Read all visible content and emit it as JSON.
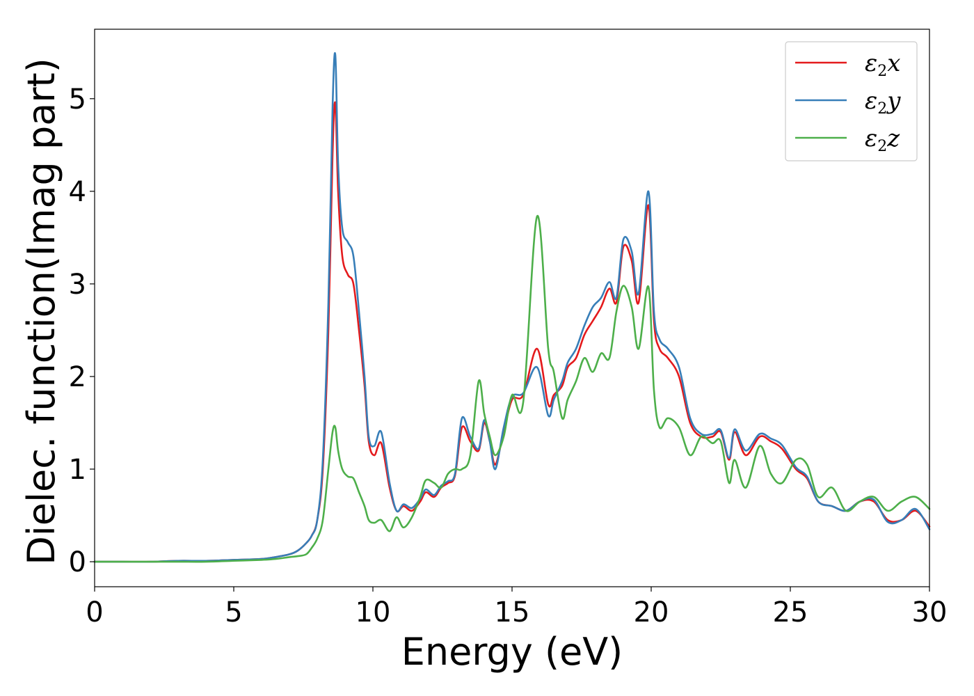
{
  "chart_data": {
    "type": "line",
    "title": "",
    "xlabel": "Energy (eV)",
    "ylabel": "Dielec. function(Imag part)",
    "xlim": [
      0,
      30
    ],
    "ylim": [
      -0.27,
      5.75
    ],
    "xticks": [
      0,
      5,
      10,
      15,
      20,
      25,
      30
    ],
    "yticks": [
      0,
      1,
      2,
      3,
      4,
      5
    ],
    "grid": false,
    "legend_position": "top-right",
    "x": [
      0,
      1,
      2,
      3,
      4,
      5,
      6,
      6.5,
      7,
      7.3,
      7.6,
      7.8,
      8.0,
      8.2,
      8.4,
      8.55,
      8.65,
      8.75,
      8.9,
      9.1,
      9.3,
      9.5,
      9.7,
      9.85,
      10.05,
      10.3,
      10.6,
      10.85,
      11.1,
      11.4,
      11.7,
      11.9,
      12.2,
      12.45,
      12.7,
      12.95,
      13.2,
      13.5,
      13.8,
      14.0,
      14.2,
      14.4,
      14.7,
      15.0,
      15.4,
      15.9,
      16.3,
      16.5,
      16.8,
      17.0,
      17.3,
      17.6,
      17.9,
      18.2,
      18.5,
      18.75,
      19.0,
      19.3,
      19.55,
      19.9,
      20.1,
      20.3,
      20.6,
      21.0,
      21.4,
      21.8,
      22.2,
      22.5,
      22.8,
      23.0,
      23.4,
      23.9,
      24.3,
      24.7,
      25.2,
      25.6,
      26.0,
      26.5,
      27.0,
      27.5,
      28.0,
      28.5,
      29.0,
      29.5,
      30.0
    ],
    "series": [
      {
        "name": "ε2x",
        "color": "#e41a1c",
        "values": [
          0.0,
          0.0,
          0.0,
          0.01,
          0.01,
          0.02,
          0.03,
          0.05,
          0.08,
          0.12,
          0.2,
          0.28,
          0.45,
          1.0,
          2.5,
          4.4,
          4.95,
          4.0,
          3.3,
          3.1,
          3.0,
          2.5,
          1.9,
          1.3,
          1.15,
          1.28,
          0.8,
          0.55,
          0.6,
          0.55,
          0.65,
          0.75,
          0.7,
          0.8,
          0.85,
          0.93,
          1.45,
          1.3,
          1.2,
          1.5,
          1.3,
          1.05,
          1.4,
          1.75,
          1.8,
          2.3,
          1.7,
          1.8,
          1.9,
          2.1,
          2.2,
          2.45,
          2.6,
          2.75,
          2.95,
          2.8,
          3.4,
          3.25,
          2.8,
          3.85,
          2.6,
          2.3,
          2.2,
          2.0,
          1.5,
          1.35,
          1.35,
          1.4,
          1.1,
          1.4,
          1.15,
          1.35,
          1.3,
          1.22,
          1.0,
          0.9,
          0.65,
          0.6,
          0.55,
          0.65,
          0.65,
          0.45,
          0.45,
          0.55,
          0.38
        ]
      },
      {
        "name": "ε2y",
        "color": "#377eb8",
        "values": [
          0.0,
          0.0,
          0.0,
          0.01,
          0.01,
          0.02,
          0.03,
          0.05,
          0.08,
          0.12,
          0.2,
          0.28,
          0.45,
          1.1,
          2.8,
          4.9,
          5.47,
          4.3,
          3.6,
          3.45,
          3.3,
          2.7,
          2.0,
          1.35,
          1.25,
          1.4,
          0.85,
          0.55,
          0.62,
          0.58,
          0.68,
          0.78,
          0.72,
          0.82,
          0.87,
          0.95,
          1.55,
          1.35,
          1.22,
          1.53,
          1.3,
          1.0,
          1.45,
          1.78,
          1.82,
          2.1,
          1.58,
          1.75,
          1.95,
          2.15,
          2.3,
          2.55,
          2.75,
          2.85,
          3.02,
          2.85,
          3.48,
          3.35,
          2.9,
          4.0,
          2.7,
          2.4,
          2.3,
          2.1,
          1.55,
          1.38,
          1.38,
          1.42,
          1.12,
          1.43,
          1.2,
          1.38,
          1.33,
          1.26,
          1.02,
          0.92,
          0.65,
          0.6,
          0.55,
          0.65,
          0.67,
          0.43,
          0.45,
          0.57,
          0.35
        ]
      },
      {
        "name": "ε2z",
        "color": "#4daf4a",
        "values": [
          0.0,
          0.0,
          0.0,
          0.0,
          0.0,
          0.01,
          0.02,
          0.03,
          0.05,
          0.06,
          0.08,
          0.15,
          0.25,
          0.45,
          1.0,
          1.4,
          1.45,
          1.2,
          1.0,
          0.92,
          0.9,
          0.75,
          0.6,
          0.45,
          0.42,
          0.45,
          0.33,
          0.48,
          0.37,
          0.48,
          0.7,
          0.88,
          0.85,
          0.8,
          0.95,
          1.0,
          1.0,
          1.15,
          1.95,
          1.6,
          1.35,
          1.15,
          1.35,
          1.8,
          1.72,
          3.73,
          2.3,
          2.05,
          1.55,
          1.75,
          1.95,
          2.2,
          2.05,
          2.25,
          2.2,
          2.7,
          2.98,
          2.75,
          2.3,
          2.97,
          1.85,
          1.45,
          1.55,
          1.45,
          1.15,
          1.35,
          1.28,
          1.3,
          0.85,
          1.1,
          0.8,
          1.25,
          0.95,
          0.85,
          1.1,
          1.05,
          0.7,
          0.8,
          0.55,
          0.65,
          0.7,
          0.55,
          0.65,
          0.7,
          0.57
        ]
      }
    ]
  }
}
